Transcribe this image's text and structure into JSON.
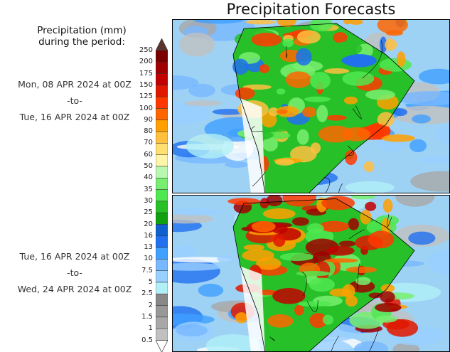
{
  "title": "Precipitation Forecasts",
  "legend_title_line1": "Precipitation (mm)",
  "legend_title_line2": "during the period:",
  "periods": [
    {
      "start": "Mon, 08 APR 2024 at 00Z",
      "sep": "-to-",
      "end": "Tue, 16 APR 2024 at 00Z"
    },
    {
      "start": "Tue, 16 APR 2024 at 00Z",
      "sep": "-to-",
      "end": "Wed, 24 APR 2024 at 00Z"
    }
  ],
  "chart_data": {
    "type": "heatmap",
    "title": "Precipitation Forecasts",
    "colorbar": {
      "units": "mm",
      "levels": [
        "250",
        "200",
        "175",
        "150",
        "125",
        "100",
        "90",
        "80",
        "70",
        "60",
        "50",
        "40",
        "35",
        "30",
        "25",
        "20",
        "16",
        "13",
        "10",
        "7.5",
        "5",
        "2.5",
        "2",
        "1.5",
        "1",
        "0.5"
      ],
      "colors": [
        "#7a0000",
        "#a00000",
        "#c20000",
        "#e01800",
        "#ff3800",
        "#ff6600",
        "#ffa000",
        "#ffc040",
        "#ffe070",
        "#fff5a8",
        "#b8f8b0",
        "#78ee70",
        "#50e850",
        "#28c028",
        "#10a010",
        "#1060d0",
        "#2070f0",
        "#40a0ff",
        "#78b8ff",
        "#98d0ff",
        "#b0f0f8",
        "#888888",
        "#989898",
        "#a8a8a8",
        "#c0c0c0"
      ],
      "over_color": "#5a3530",
      "under_color": "#ffffff"
    },
    "panels": [
      "Mon, 08 APR 2024 at 00Z -to- Tue, 16 APR 2024 at 00Z",
      "Tue, 16 APR 2024 at 00Z -to- Wed, 24 APR 2024 at 00Z"
    ]
  }
}
